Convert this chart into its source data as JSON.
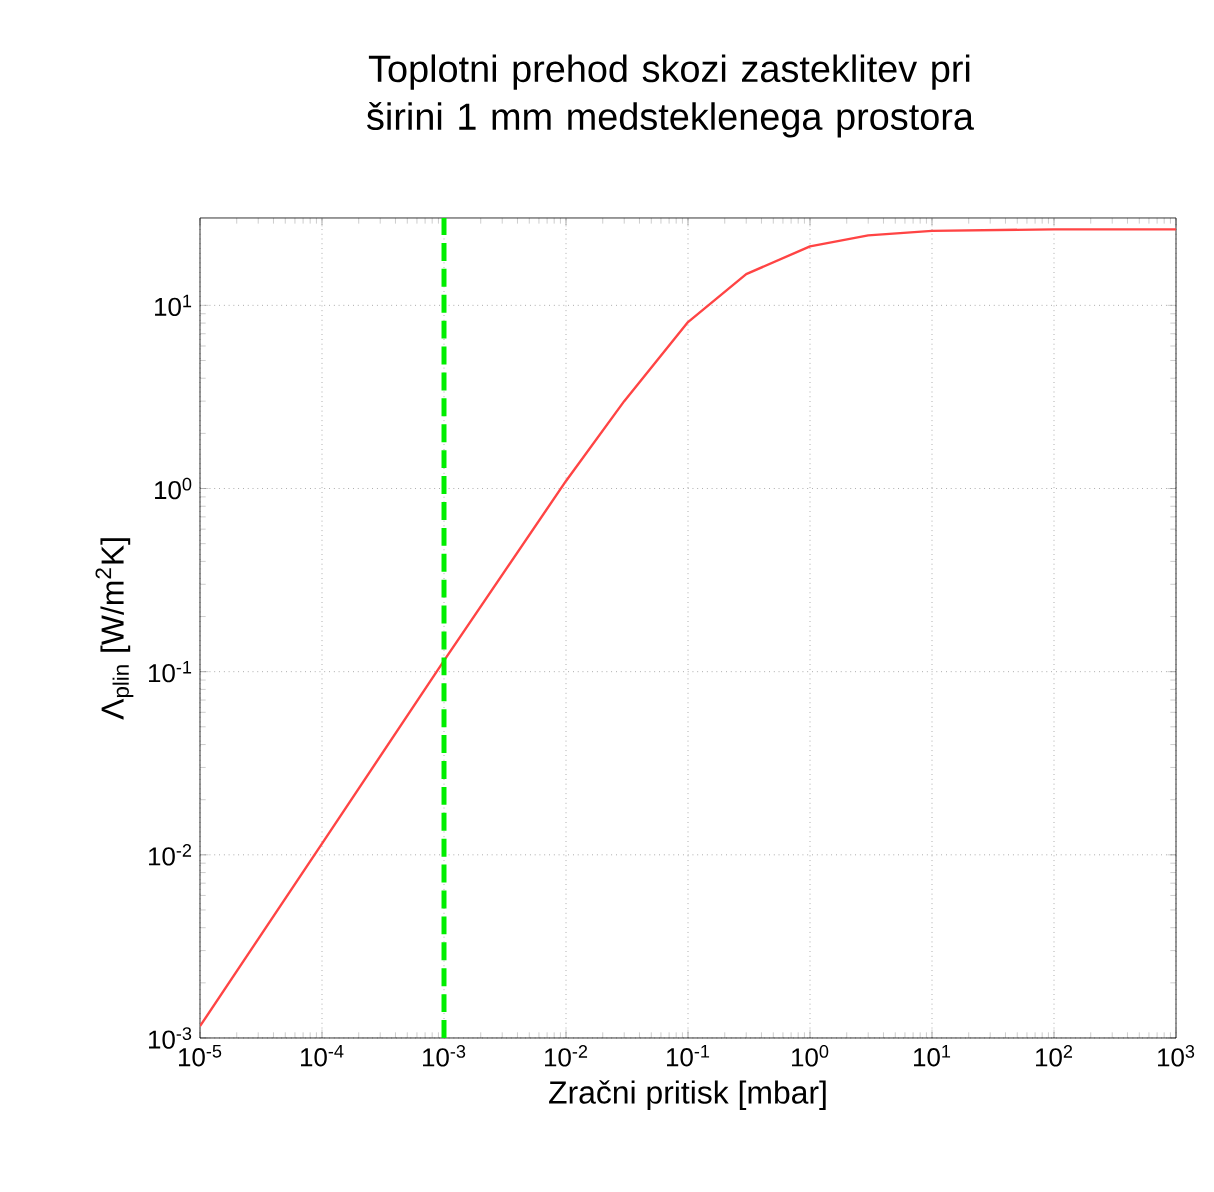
{
  "chart_data": {
    "type": "line",
    "title": "Toplotni prehod skozi zasteklitev pri širini 1 mm medsteklenega prostora",
    "xlabel": "Zračni pritisk [mbar]",
    "ylabel": "Λ$_{plin}$ [W/m$^{2}$K]",
    "x": [
      1e-05,
      0.0001,
      0.001,
      0.01,
      0.03,
      0.1,
      0.3,
      1,
      3,
      10,
      100,
      1000
    ],
    "series": [
      {
        "color": "#ff4444",
        "values": [
          0.00116,
          0.0115,
          0.115,
          1.1,
          3.0,
          8.1,
          14.8,
          21,
          24.1,
          25.5,
          26,
          26
        ]
      }
    ],
    "log": "xy",
    "grid": true,
    "marker": "none",
    "line_style": "solid",
    "xlim": [
      1e-05,
      1000
    ],
    "ylim": [
      0.001,
      30
    ],
    "xticks": [
      {
        "value": 1e-05,
        "label": "10$^{-5}$"
      },
      {
        "value": 0.0001,
        "label": "10$^{-4}$"
      },
      {
        "value": 0.001,
        "label": "10$^{-3}$"
      },
      {
        "value": 0.01,
        "label": "10$^{-2}$"
      },
      {
        "value": 0.1,
        "label": "10$^{-1}$"
      },
      {
        "value": 1,
        "label": "10$^{0}$"
      },
      {
        "value": 10,
        "label": "10$^{1}$"
      },
      {
        "value": 100,
        "label": "10$^{2}$"
      },
      {
        "value": 1000,
        "label": "10$^{3}$"
      }
    ],
    "yticks": [
      {
        "value": 0.001,
        "label": "10$^{-3}$"
      },
      {
        "value": 0.01,
        "label": "10$^{-2}$"
      },
      {
        "value": 0.1,
        "label": "10$^{-1}$"
      },
      {
        "value": 1,
        "label": "10$^{0}$"
      },
      {
        "value": 10,
        "label": "10$^{1}$"
      }
    ],
    "ref_lines": [
      {
        "axis": "x",
        "value": 0.001,
        "color": "#00ee00",
        "line_style": "dashed"
      }
    ]
  }
}
